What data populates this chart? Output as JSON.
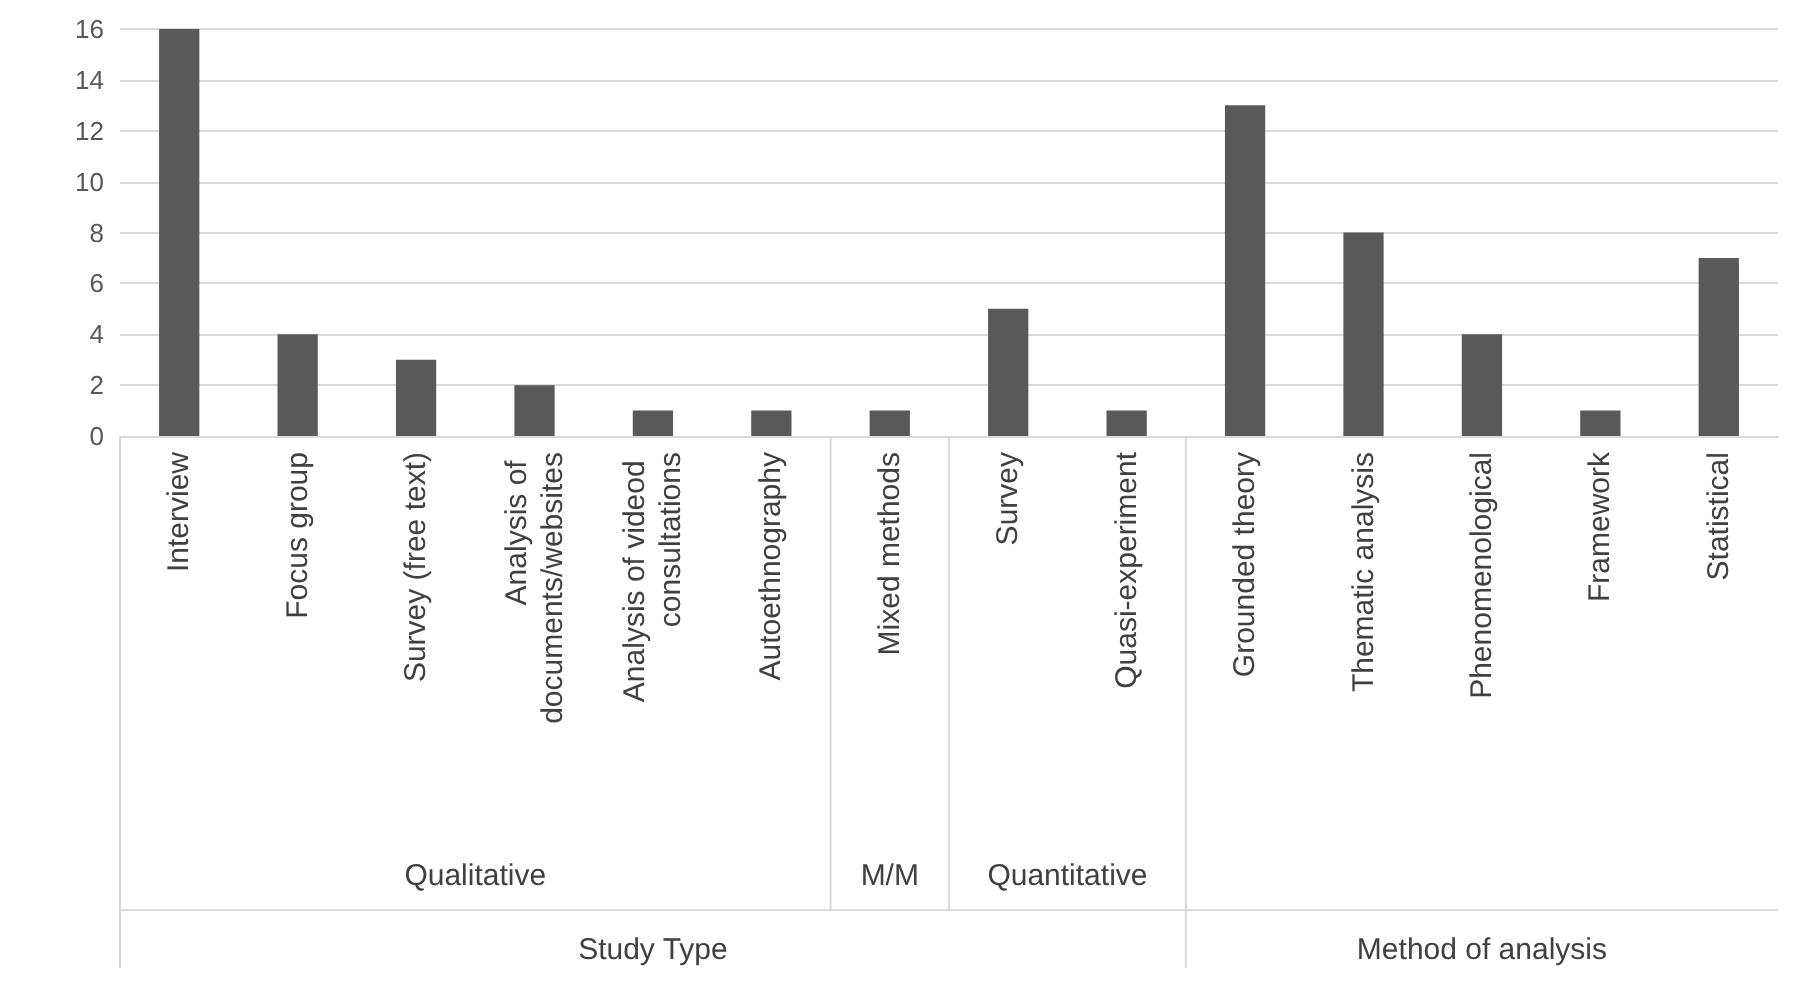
{
  "chart_data": {
    "type": "bar",
    "categories": [
      "Interview",
      "Focus group",
      "Survey (free text)",
      "Analysis of documents/websites",
      "Analysis of videod consultations",
      "Autoethnography",
      "Mixed methods",
      "Survey",
      "Quasi-experiment",
      "Grounded theory",
      "Thematic analysis",
      "Phenomenological",
      "Framework",
      "Statistical"
    ],
    "values": [
      16,
      4,
      3,
      2,
      1,
      1,
      1,
      5,
      1,
      13,
      8,
      4,
      1,
      7
    ],
    "color": "#595959",
    "ylim": [
      0,
      16
    ],
    "yticks": [
      0,
      2,
      4,
      6,
      8,
      10,
      12,
      14,
      16
    ],
    "grid": "y",
    "annotations": [
      "Qualitative",
      "M/M",
      "Quantitative",
      "Study Type",
      "Method of analysis"
    ]
  }
}
